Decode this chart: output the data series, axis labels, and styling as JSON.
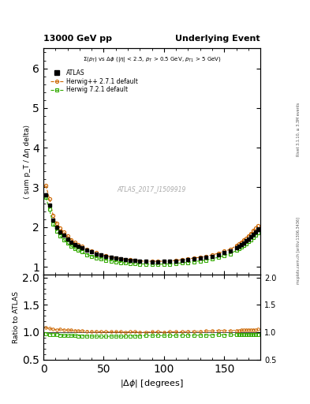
{
  "title_left": "13000 GeV pp",
  "title_right": "Underlying Event",
  "annotation": "ATLAS_2017_I1509919",
  "right_label_top": "Rivet 3.1.10, ≥ 3.3M events",
  "right_label_bot": "mcplots.cern.ch [arXiv:1306.3436]",
  "subplot_annotation": "Σ(p_T) vs Δϕ (|η| < 2.5, p_T > 0.5 GeV, p_{T1} > 5 GeV)",
  "ylabel_main": "⟨ sum p_T / Δη delta⟩",
  "ylabel_ratio": "Ratio to ATLAS",
  "ylim_main": [
    0.8,
    6.5
  ],
  "ylim_ratio": [
    0.5,
    2.05
  ],
  "xlim": [
    0,
    180
  ],
  "yticks_main": [
    1,
    2,
    3,
    4,
    5,
    6
  ],
  "yticks_ratio": [
    0.5,
    1.0,
    1.5,
    2.0
  ],
  "xticks": [
    0,
    50,
    100,
    150
  ],
  "atlas_color": "#000000",
  "herwig_pp_color": "#cc6600",
  "herwig7_color": "#33aa00",
  "background_color": "#ffffff",
  "dphi_vals": [
    2,
    5,
    8,
    11,
    14,
    17,
    20,
    23,
    26,
    29,
    32,
    36,
    40,
    44,
    48,
    52,
    56,
    60,
    64,
    68,
    72,
    76,
    80,
    85,
    90,
    95,
    100,
    105,
    110,
    115,
    120,
    125,
    130,
    135,
    140,
    145,
    150,
    155,
    160,
    162,
    164,
    166,
    168,
    170,
    172,
    174,
    176,
    178
  ],
  "atlas_vals": [
    2.82,
    2.55,
    2.18,
    2.0,
    1.87,
    1.79,
    1.7,
    1.62,
    1.56,
    1.51,
    1.47,
    1.41,
    1.37,
    1.33,
    1.3,
    1.27,
    1.24,
    1.22,
    1.2,
    1.19,
    1.17,
    1.16,
    1.15,
    1.14,
    1.13,
    1.13,
    1.14,
    1.14,
    1.15,
    1.17,
    1.18,
    1.2,
    1.22,
    1.24,
    1.27,
    1.3,
    1.35,
    1.4,
    1.48,
    1.52,
    1.56,
    1.6,
    1.65,
    1.7,
    1.76,
    1.82,
    1.88,
    1.93
  ],
  "herwig_pp_vals": [
    3.05,
    2.72,
    2.3,
    2.1,
    1.97,
    1.87,
    1.77,
    1.68,
    1.61,
    1.55,
    1.51,
    1.44,
    1.39,
    1.35,
    1.31,
    1.28,
    1.25,
    1.23,
    1.21,
    1.19,
    1.18,
    1.17,
    1.15,
    1.14,
    1.14,
    1.14,
    1.14,
    1.15,
    1.16,
    1.18,
    1.2,
    1.22,
    1.24,
    1.27,
    1.3,
    1.34,
    1.39,
    1.44,
    1.53,
    1.57,
    1.62,
    1.67,
    1.72,
    1.78,
    1.84,
    1.91,
    1.97,
    2.03
  ],
  "herwig7_vals": [
    2.75,
    2.45,
    2.07,
    1.9,
    1.77,
    1.68,
    1.59,
    1.52,
    1.46,
    1.41,
    1.37,
    1.31,
    1.27,
    1.23,
    1.2,
    1.17,
    1.15,
    1.13,
    1.11,
    1.1,
    1.09,
    1.08,
    1.07,
    1.07,
    1.06,
    1.06,
    1.07,
    1.07,
    1.08,
    1.1,
    1.11,
    1.13,
    1.15,
    1.17,
    1.2,
    1.24,
    1.28,
    1.33,
    1.41,
    1.45,
    1.49,
    1.53,
    1.58,
    1.63,
    1.68,
    1.74,
    1.8,
    1.85
  ],
  "atlas_err": [
    0.05,
    0.04,
    0.04,
    0.03,
    0.03,
    0.03,
    0.02,
    0.02,
    0.02,
    0.02,
    0.02,
    0.02,
    0.015,
    0.015,
    0.015,
    0.015,
    0.015,
    0.015,
    0.015,
    0.015,
    0.015,
    0.015,
    0.015,
    0.015,
    0.015,
    0.015,
    0.015,
    0.015,
    0.015,
    0.015,
    0.015,
    0.015,
    0.015,
    0.015,
    0.015,
    0.015,
    0.02,
    0.02,
    0.02,
    0.02,
    0.02,
    0.02,
    0.02,
    0.02,
    0.02,
    0.02,
    0.02,
    0.02
  ]
}
